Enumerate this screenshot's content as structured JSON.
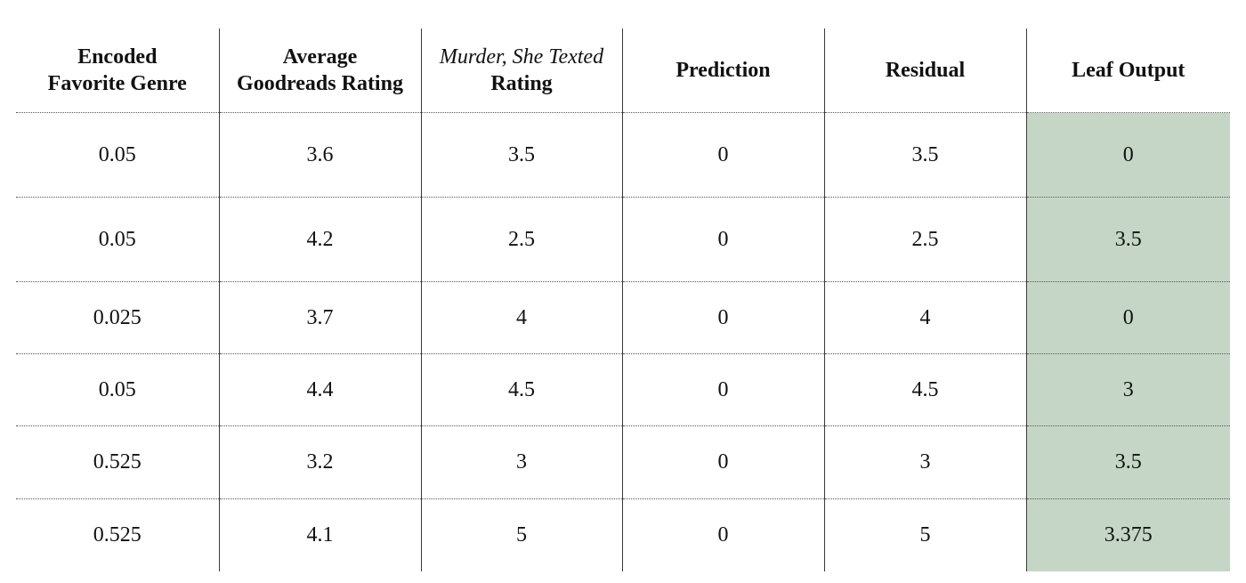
{
  "table": {
    "headers": {
      "encoded_genre": [
        "Encoded",
        "Favorite Genre"
      ],
      "avg_goodreads": [
        "Average",
        "Goodreads Rating"
      ],
      "murder_title": "Murder, She Texted",
      "murder_suffix": "Rating",
      "prediction": "Prediction",
      "residual": "Residual",
      "leaf_output": "Leaf Output"
    },
    "highlight_color": "#c5d6c7",
    "rows": [
      {
        "encoded_genre": "0.05",
        "avg_goodreads": "3.6",
        "murder_rating": "3.5",
        "prediction": "0",
        "residual": "3.5",
        "leaf_output": "0"
      },
      {
        "encoded_genre": "0.05",
        "avg_goodreads": "4.2",
        "murder_rating": "2.5",
        "prediction": "0",
        "residual": "2.5",
        "leaf_output": "3.5"
      },
      {
        "encoded_genre": "0.025",
        "avg_goodreads": "3.7",
        "murder_rating": "4",
        "prediction": "0",
        "residual": "4",
        "leaf_output": "0"
      },
      {
        "encoded_genre": "0.05",
        "avg_goodreads": "4.4",
        "murder_rating": "4.5",
        "prediction": "0",
        "residual": "4.5",
        "leaf_output": "3"
      },
      {
        "encoded_genre": "0.525",
        "avg_goodreads": "3.2",
        "murder_rating": "3",
        "prediction": "0",
        "residual": "3",
        "leaf_output": "3.5"
      },
      {
        "encoded_genre": "0.525",
        "avg_goodreads": "4.1",
        "murder_rating": "5",
        "prediction": "0",
        "residual": "5",
        "leaf_output": "3.375"
      }
    ]
  }
}
